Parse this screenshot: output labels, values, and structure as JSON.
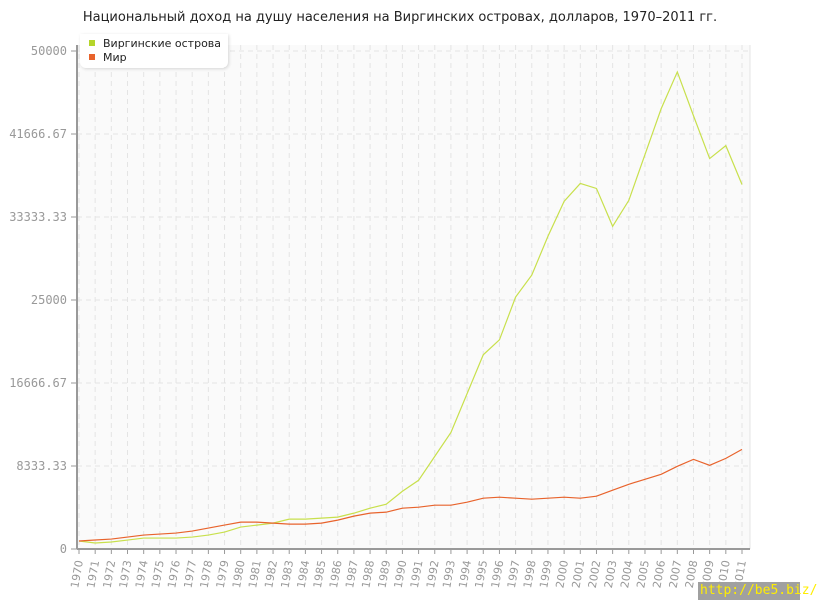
{
  "chart_data": {
    "type": "line",
    "title": "Национальный доход на душу населения на Виргинских островах, долларов, 1970–2011 гг.",
    "x": [
      1970,
      1971,
      1972,
      1973,
      1974,
      1975,
      1976,
      1977,
      1978,
      1979,
      1980,
      1981,
      1982,
      1983,
      1984,
      1985,
      1986,
      1987,
      1988,
      1989,
      1990,
      1991,
      1992,
      1993,
      1994,
      1995,
      1996,
      1997,
      1998,
      1999,
      2000,
      2001,
      2002,
      2003,
      2004,
      2005,
      2006,
      2007,
      2008,
      2009,
      2010,
      2011
    ],
    "ylim": [
      0,
      50000
    ],
    "yticks": [
      "0",
      "8333.33",
      "16666.67",
      "25000",
      "33333.33",
      "41666.67",
      "50000"
    ],
    "grid": true,
    "legend": "top-left",
    "series": [
      {
        "name": "Виргинские острова",
        "color": "#c8e04c",
        "legend_color": "#b5d52a",
        "values": [
          800,
          600,
          700,
          900,
          1100,
          1100,
          1100,
          1200,
          1400,
          1700,
          2200,
          2400,
          2600,
          3000,
          3000,
          3100,
          3200,
          3600,
          4100,
          4500,
          5800,
          6900,
          9300,
          11700,
          15600,
          19500,
          21000,
          25300,
          27500,
          31400,
          34900,
          36700,
          36200,
          32400,
          35000,
          39600,
          44200,
          47900,
          43500,
          39200,
          40500,
          36600
        ]
      },
      {
        "name": "Мир",
        "color": "#e8632c",
        "legend_color": "#e8632c",
        "values": [
          800,
          900,
          1000,
          1200,
          1400,
          1500,
          1600,
          1800,
          2100,
          2400,
          2700,
          2700,
          2600,
          2500,
          2500,
          2600,
          2900,
          3300,
          3600,
          3700,
          4100,
          4200,
          4400,
          4400,
          4700,
          5100,
          5200,
          5100,
          5000,
          5100,
          5200,
          5100,
          5300,
          5900,
          6500,
          7000,
          7500,
          8300,
          9000,
          8400,
          9100,
          10000
        ]
      }
    ]
  },
  "watermark": "http://be5.biz/"
}
